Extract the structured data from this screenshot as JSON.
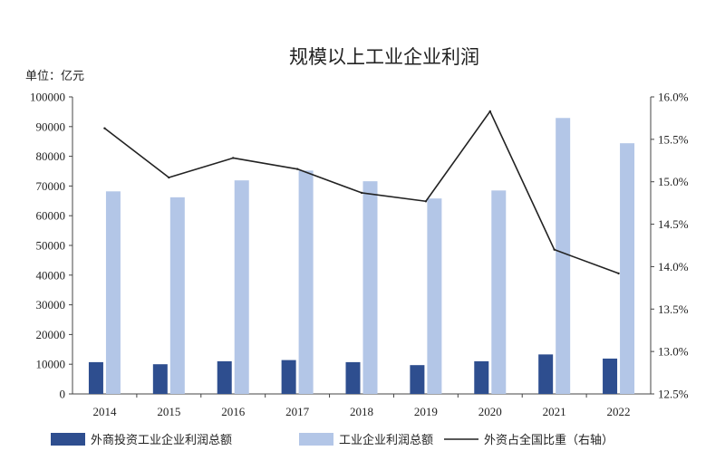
{
  "chart_data": {
    "type": "bar",
    "title": "规模以上工业企业利润",
    "unit_label": "单位：亿元",
    "categories": [
      "2014",
      "2015",
      "2016",
      "2017",
      "2018",
      "2019",
      "2020",
      "2021",
      "2022"
    ],
    "series": [
      {
        "name": "外商投资工业企业利润总额",
        "kind": "bar",
        "axis": "left",
        "color": "#2e4e8f",
        "values": [
          10700,
          10000,
          11000,
          11400,
          10700,
          9700,
          11000,
          13300,
          11900
        ]
      },
      {
        "name": "工业企业利润总额",
        "kind": "bar",
        "axis": "left",
        "color": "#b3c6e7",
        "values": [
          68200,
          66200,
          71900,
          75200,
          71600,
          65800,
          68500,
          92900,
          84400
        ]
      },
      {
        "name": "外资占全国比重（右轴）",
        "kind": "line",
        "axis": "right",
        "color": "#222222",
        "values": [
          15.63,
          15.05,
          15.28,
          15.15,
          14.87,
          14.77,
          15.83,
          14.2,
          13.92
        ]
      }
    ],
    "y_left": {
      "min": 0,
      "max": 100000,
      "step": 10000,
      "ticks": [
        "0",
        "10000",
        "20000",
        "30000",
        "40000",
        "50000",
        "60000",
        "70000",
        "80000",
        "90000",
        "100000"
      ]
    },
    "y_right": {
      "min": 12.5,
      "max": 16.0,
      "step": 0.5,
      "ticks": [
        "12.5%",
        "13.0%",
        "13.5%",
        "14.0%",
        "14.5%",
        "15.0%",
        "15.5%",
        "16.0%"
      ]
    },
    "grid": false,
    "legend_position": "bottom"
  }
}
